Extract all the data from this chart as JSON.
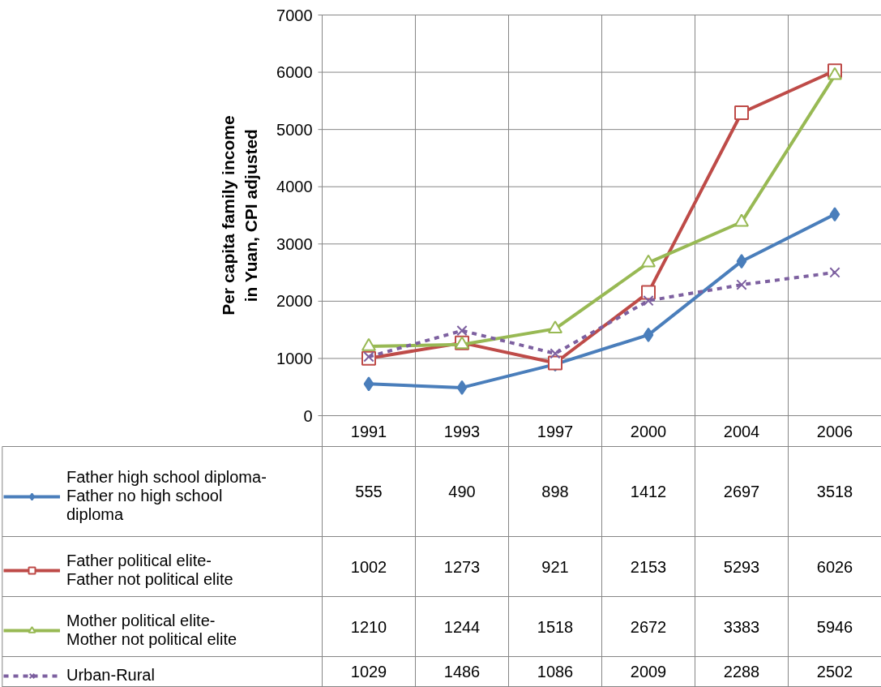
{
  "chart_data": {
    "type": "line",
    "ylabel": "Per capita family income\nin Yuan, CPI adjusted",
    "categories": [
      "1991",
      "1993",
      "1997",
      "2000",
      "2004",
      "2006"
    ],
    "series": [
      {
        "name": "Father high school diploma-Father no high school diploma",
        "color": "#4a7ebb",
        "marker": "diamond",
        "values": [
          555,
          490,
          898,
          1412,
          2697,
          3518
        ]
      },
      {
        "name": "Father political elite-Father not political elite",
        "color": "#be4b48",
        "marker": "square",
        "values": [
          1002,
          1273,
          921,
          2153,
          5293,
          6026
        ]
      },
      {
        "name": "Mother political elite-Mother not political elite",
        "color": "#98b954",
        "marker": "triangle",
        "values": [
          1210,
          1244,
          1518,
          2672,
          3383,
          5946
        ]
      },
      {
        "name": "Urban-Rural",
        "color": "#7d60a0",
        "marker": "x",
        "line_style": "dashed",
        "values": [
          1029,
          1486,
          1086,
          2009,
          2288,
          2502
        ]
      }
    ],
    "ylim": [
      0,
      7000
    ],
    "yticks": [
      0,
      1000,
      2000,
      3000,
      4000,
      5000,
      6000,
      7000
    ],
    "grid": true,
    "data_labels": true,
    "legend": "bottom"
  }
}
